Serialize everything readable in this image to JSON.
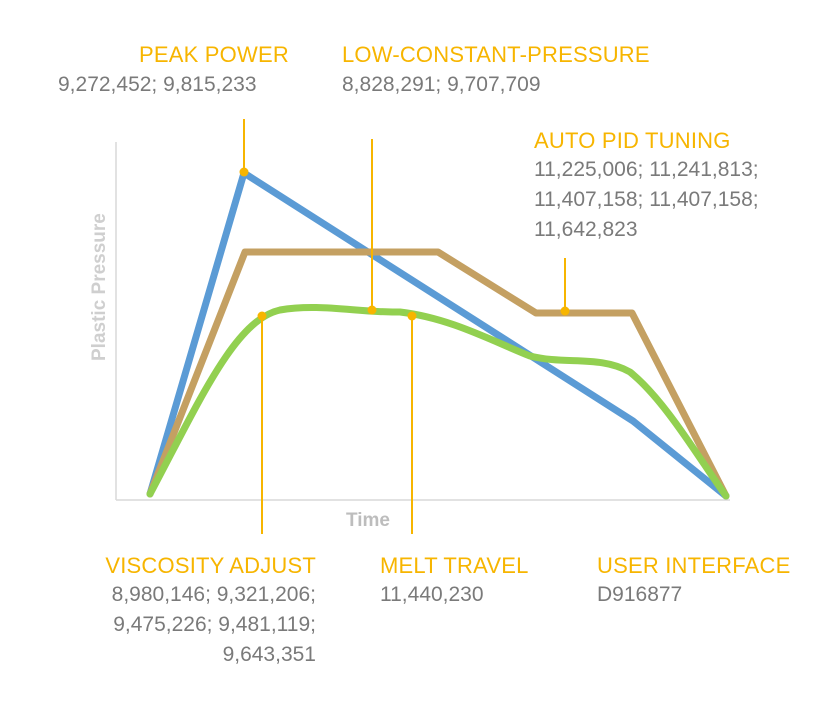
{
  "axes": {
    "ylabel": "Plastic Pressure",
    "xlabel": "Time"
  },
  "colors": {
    "accent": "#f7b500",
    "text_gray": "#7a7a7a",
    "axis": "#cfcfcf",
    "curve_blue": "#5b9bd5",
    "curve_tan": "#c4a062",
    "curve_green": "#92d050"
  },
  "curves": [
    {
      "name": "peak-power-profile",
      "color": "#5b9bd5"
    },
    {
      "name": "constant-pressure-profile",
      "color": "#c4a062"
    },
    {
      "name": "adaptive-profile",
      "color": "#92d050"
    }
  ],
  "callouts": {
    "peak_power": {
      "title": "PEAK POWER",
      "lines": [
        "9,272,452; 9,815,233"
      ]
    },
    "low_constant_pressure": {
      "title": "LOW-CONSTANT-PRESSURE",
      "lines": [
        "8,828,291; 9,707,709"
      ]
    },
    "auto_pid_tuning": {
      "title": "AUTO PID TUNING",
      "lines": [
        "11,225,006; 11,241,813;",
        "11,407,158; 11,407,158;",
        "11,642,823"
      ]
    },
    "viscosity_adjust": {
      "title": "VISCOSITY ADJUST",
      "lines": [
        "8,980,146; 9,321,206;",
        "9,475,226; 9,481,119;",
        "9,643,351"
      ]
    },
    "melt_travel": {
      "title": "MELT TRAVEL",
      "lines": [
        "11,440,230"
      ]
    },
    "user_interface": {
      "title": "USER INTERFACE",
      "lines": [
        "D916877"
      ]
    }
  }
}
